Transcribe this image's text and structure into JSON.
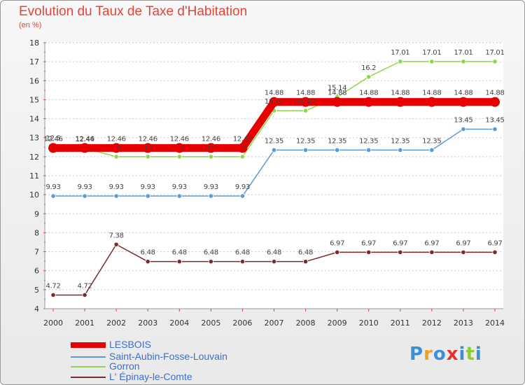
{
  "chart_data": {
    "type": "line",
    "title": "Evolution du Taux de Taxe d'Habitation",
    "ylabel": "(en %)",
    "xlabel": "",
    "ylim": [
      4,
      18
    ],
    "yticks": [
      "4",
      "5",
      "6",
      "7",
      "8",
      "9",
      "10",
      "11",
      "12",
      "13",
      "14",
      "15",
      "16",
      "17",
      "18"
    ],
    "categories": [
      "2000",
      "2001",
      "2002",
      "2003",
      "2004",
      "2005",
      "2006",
      "2007",
      "2008",
      "2009",
      "2010",
      "2011",
      "2012",
      "2013",
      "2014"
    ],
    "grid": "horizontal",
    "series": [
      {
        "name": "LESBOIS",
        "color": "#e80000",
        "values": [
          12.46,
          12.46,
          12.46,
          12.46,
          12.46,
          12.46,
          12.46,
          14.88,
          14.88,
          14.88,
          14.88,
          14.88,
          14.88,
          14.88,
          14.88
        ],
        "labels": [
          "12.46",
          "12.46",
          "12.46",
          "12.46",
          "12.46",
          "12.46",
          "12.46",
          "14.88",
          "14.88",
          "14.88",
          "14.88",
          "14.88",
          "14.88",
          "14.88",
          "14.88"
        ]
      },
      {
        "name": "Saint-Aubin-Fosse-Louvain",
        "color": "#5b9bd5",
        "values": [
          9.93,
          9.93,
          9.93,
          9.93,
          9.93,
          9.93,
          9.93,
          12.35,
          12.35,
          12.35,
          12.35,
          12.35,
          12.35,
          13.45,
          13.45
        ],
        "labels": [
          "9.93",
          "9.93",
          "9.93",
          "9.93",
          "9.93",
          "9.93",
          "9.93",
          "12.35",
          "12.35",
          "12.35",
          "12.35",
          "12.35",
          "12.35",
          "13.45",
          "13.45"
        ]
      },
      {
        "name": "Gorron",
        "color": "#8ed64a",
        "values": [
          12.5,
          12.44,
          12,
          12,
          12,
          12,
          12,
          14.42,
          14.42,
          15.14,
          16.2,
          17.01,
          17.01,
          17.01,
          17.01
        ],
        "labels": [
          "12.5",
          "12.44",
          "12",
          "12",
          "12",
          "12",
          "12",
          "14.42",
          "14.42",
          "15.14",
          "16.2",
          "17.01",
          "17.01",
          "17.01",
          "17.01"
        ]
      },
      {
        "name": "L' Épinay-le-Comte",
        "color": "#7a2a2a",
        "values": [
          4.72,
          4.72,
          7.38,
          6.48,
          6.48,
          6.48,
          6.48,
          6.48,
          6.48,
          6.97,
          6.97,
          6.97,
          6.97,
          6.97,
          6.97
        ],
        "labels": [
          "4.72",
          "4.72",
          "7.38",
          "6.48",
          "6.48",
          "6.48",
          "6.48",
          "6.48",
          "6.48",
          "6.97",
          "6.97",
          "6.97",
          "6.97",
          "6.97",
          "6.97"
        ]
      }
    ]
  },
  "logo": {
    "letters": [
      "P",
      "r",
      "o",
      "x",
      "i",
      "t",
      "i"
    ],
    "colors": [
      "#3a8fd6",
      "#f0a020",
      "#3a8fd6",
      "#e83030",
      "#3a8fd6",
      "#8ccc3a",
      "#3a8fd6"
    ]
  }
}
